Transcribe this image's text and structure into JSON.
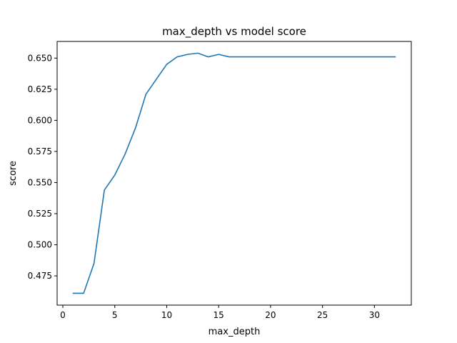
{
  "chart_data": {
    "type": "line",
    "title": "max_depth vs model score",
    "xlabel": "max_depth",
    "ylabel": "score",
    "xlim": [
      -0.55,
      33.55
    ],
    "ylim": [
      0.4515,
      0.6634
    ],
    "xticks": [
      0,
      5,
      10,
      15,
      20,
      25,
      30
    ],
    "yticks": [
      0.475,
      0.5,
      0.525,
      0.55,
      0.575,
      0.6,
      0.625,
      0.65
    ],
    "ytick_labels": [
      "0.475",
      "0.500",
      "0.525",
      "0.550",
      "0.575",
      "0.600",
      "0.625",
      "0.650"
    ],
    "grid": false,
    "series": [
      {
        "color": "#1f77b4",
        "x": [
          1,
          2,
          3,
          4,
          5,
          6,
          7,
          8,
          9,
          10,
          11,
          12,
          13,
          14,
          15,
          16,
          17,
          18,
          19,
          20,
          21,
          22,
          23,
          24,
          25,
          26,
          27,
          28,
          29,
          30,
          31,
          32
        ],
        "y": [
          0.461,
          0.461,
          0.485,
          0.544,
          0.556,
          0.573,
          0.594,
          0.621,
          0.633,
          0.645,
          0.651,
          0.653,
          0.654,
          0.651,
          0.653,
          0.651,
          0.651,
          0.651,
          0.651,
          0.651,
          0.651,
          0.651,
          0.651,
          0.651,
          0.651,
          0.651,
          0.651,
          0.651,
          0.651,
          0.651,
          0.651,
          0.651
        ]
      }
    ]
  }
}
